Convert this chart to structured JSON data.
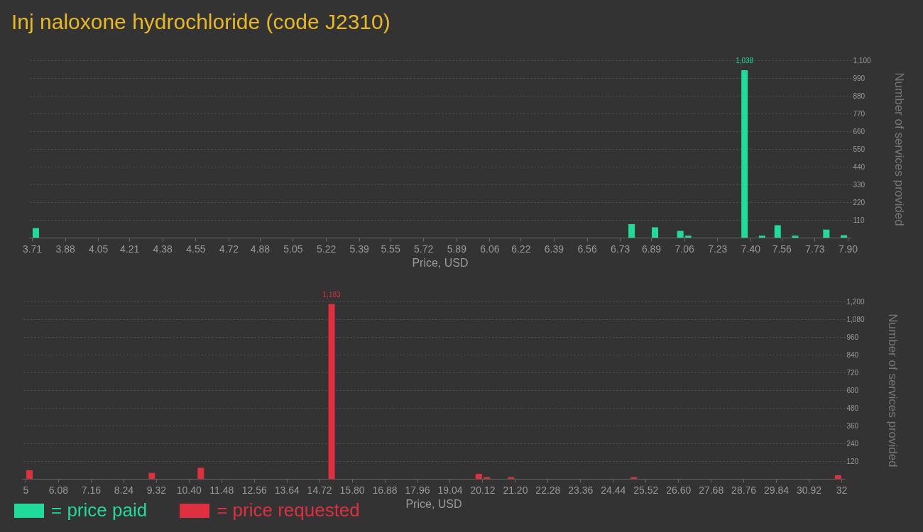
{
  "chart_data": [
    {
      "type": "bar",
      "title": "Inj naloxone hydrochloride (code J2310)",
      "xlabel": "Price, USD",
      "ylabel": "Number of services provided",
      "x": [
        3.73,
        6.79,
        6.91,
        7.04,
        7.08,
        7.37,
        7.46,
        7.54,
        7.63,
        7.79,
        7.88
      ],
      "series": [
        {
          "name": "= price paid",
          "color": "#1fdc9a",
          "values": [
            59,
            84,
            64,
            42,
            12,
            1038,
            12,
            77,
            12,
            50,
            15
          ],
          "value_labels": [
            null,
            null,
            null,
            null,
            null,
            "1,038",
            null,
            null,
            null,
            null,
            null
          ]
        }
      ],
      "xlim": [
        3.71,
        7.9
      ],
      "xticks": [
        3.71,
        3.88,
        4.05,
        4.21,
        4.38,
        4.55,
        4.72,
        4.88,
        5.05,
        5.22,
        5.39,
        5.55,
        5.72,
        5.89,
        6.06,
        6.22,
        6.39,
        6.56,
        6.73,
        6.89,
        7.06,
        7.23,
        {
          "value": 7.4,
          "label": "7.40"
        },
        7.56,
        7.73,
        {
          "value": 7.9,
          "label": "7.90"
        }
      ],
      "ylim": [
        0,
        1100
      ],
      "yticks": [
        110,
        220,
        330,
        440,
        550,
        660,
        770,
        880,
        990,
        {
          "value": 1100,
          "label": "1,100"
        }
      ],
      "grid": "y",
      "legend": "bottom left"
    },
    {
      "type": "bar",
      "xlabel": "Price, USD",
      "ylabel": "Number of services provided",
      "x": [
        5.13,
        9.18,
        10.8,
        15.13,
        20.0,
        20.27,
        21.07,
        25.13,
        31.89
      ],
      "series": [
        {
          "name": "= price requested",
          "color": "#e0303f",
          "values": [
            58,
            40,
            74,
            1183,
            34,
            11,
            11,
            11,
            24
          ],
          "value_labels": [
            null,
            null,
            null,
            "1,183",
            null,
            null,
            null,
            null,
            null
          ]
        }
      ],
      "xlim": [
        5,
        32
      ],
      "xticks": [
        5,
        6.08,
        7.16,
        8.24,
        9.32,
        {
          "value": 10.4,
          "label": "10.40"
        },
        11.48,
        12.56,
        13.64,
        14.72,
        {
          "value": 15.8,
          "label": "15.80"
        },
        16.88,
        17.96,
        19.04,
        20.12,
        {
          "value": 21.2,
          "label": "21.20"
        },
        22.28,
        23.36,
        24.44,
        25.52,
        {
          "value": 26.6,
          "label": "26.60"
        },
        27.68,
        28.76,
        29.84,
        30.92,
        32
      ],
      "ylim": [
        0,
        1200
      ],
      "yticks": [
        120,
        240,
        360,
        480,
        600,
        720,
        840,
        960,
        {
          "value": 1080,
          "label": "1,080"
        },
        {
          "value": 1200,
          "label": "1,200"
        }
      ],
      "grid": "y",
      "legend": "bottom left"
    }
  ]
}
